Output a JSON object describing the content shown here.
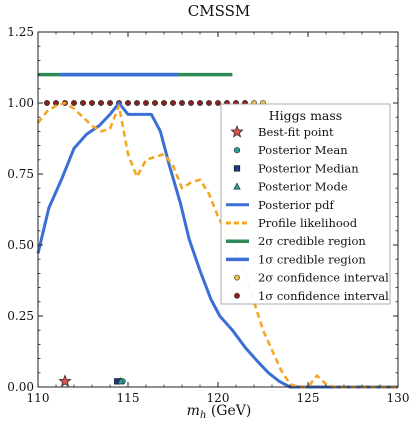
{
  "chart_data": {
    "type": "line",
    "title": "CMSSM",
    "xlabel": "m_h (GeV)",
    "ylabel": "",
    "xlim": [
      110,
      130
    ],
    "ylim": [
      0,
      1.25
    ],
    "x_ticks": [
      110,
      115,
      120,
      125,
      130
    ],
    "y_ticks": [
      0.0,
      0.25,
      0.5,
      0.75,
      1.0,
      1.25
    ],
    "x_tick_labels": [
      "110",
      "115",
      "120",
      "125",
      "130"
    ],
    "y_tick_labels": [
      "0.00",
      "0.25",
      "0.50",
      "0.75",
      "1.00",
      "1.25"
    ],
    "legend_title": "Higgs mass",
    "legend_position": "center-right",
    "series": [
      {
        "name": "Posterior pdf",
        "kind": "line",
        "color": "#3b6fd6",
        "x": [
          110.0,
          110.6,
          111.3,
          112.0,
          112.7,
          113.4,
          114.0,
          114.5,
          115.0,
          115.6,
          116.3,
          116.8,
          117.3,
          117.9,
          118.4,
          119.0,
          119.6,
          120.1,
          120.8,
          121.5,
          122.2,
          122.8,
          123.4,
          124.0,
          130.0
        ],
        "y": [
          0.47,
          0.63,
          0.73,
          0.84,
          0.89,
          0.92,
          0.96,
          1.0,
          0.96,
          0.96,
          0.96,
          0.9,
          0.78,
          0.65,
          0.52,
          0.41,
          0.31,
          0.25,
          0.2,
          0.14,
          0.09,
          0.05,
          0.02,
          0.0,
          0.0
        ]
      },
      {
        "name": "Profile likelihood",
        "kind": "dashed",
        "color": "#f5a623",
        "x": [
          110.0,
          110.5,
          111.0,
          111.5,
          112.0,
          112.5,
          113.0,
          113.5,
          114.0,
          114.5,
          115.0,
          115.5,
          116.0,
          116.5,
          117.0,
          117.5,
          118.0,
          118.5,
          119.0,
          119.5,
          120.0,
          120.5,
          121.0,
          121.5,
          122.0,
          122.5,
          123.0,
          123.5,
          124.0,
          124.5,
          125.0,
          125.5,
          126.0,
          126.5,
          127.0,
          130.0
        ],
        "y": [
          0.93,
          0.97,
          0.99,
          1.0,
          0.98,
          0.95,
          0.92,
          0.9,
          0.91,
          0.99,
          0.82,
          0.74,
          0.8,
          0.81,
          0.82,
          0.78,
          0.7,
          0.72,
          0.73,
          0.68,
          0.6,
          0.54,
          0.48,
          0.4,
          0.3,
          0.2,
          0.13,
          0.06,
          0.01,
          0.0,
          0.0,
          0.04,
          0.01,
          0.0,
          0.0,
          0.0
        ]
      }
    ],
    "intervals": [
      {
        "name": "2σ credible region",
        "color": "#2e8b57",
        "y": 1.1,
        "ranges": [
          [
            110.0,
            120.8
          ]
        ]
      },
      {
        "name": "1σ credible region",
        "color": "#3b6fd6",
        "y": 1.1,
        "ranges": [
          [
            111.2,
            117.8
          ]
        ]
      }
    ],
    "dot_rows": [
      {
        "name": "2σ confidence interval",
        "face": "#f5c24a",
        "edge": "#333333",
        "y": 1.0,
        "x": [
          110.5,
          111.0,
          111.5,
          112.0,
          112.5,
          113.0,
          113.5,
          114.0,
          114.5,
          115.0,
          115.5,
          116.0,
          116.5,
          117.0,
          117.5,
          118.0,
          118.5,
          119.0,
          119.5,
          120.0,
          120.5,
          121.0,
          121.5,
          122.0,
          122.5
        ]
      },
      {
        "name": "1σ confidence interval",
        "face": "#8b2020",
        "edge": "#333333",
        "y": 1.0,
        "x": [
          110.5,
          111.0,
          111.5,
          112.0,
          112.5,
          113.0,
          113.5,
          114.0,
          114.5,
          115.0,
          115.5,
          116.0,
          116.5,
          117.0,
          117.5,
          118.0,
          118.5,
          119.0,
          119.5,
          120.0,
          120.5,
          121.0,
          121.5
        ]
      }
    ],
    "points": [
      {
        "name": "Best-fit point",
        "marker": "star",
        "color": "#d9534f",
        "x": 111.5,
        "y": 0.02
      },
      {
        "name": "Posterior Mean",
        "marker": "circle",
        "color": "#2aa198",
        "x": 114.7,
        "y": 0.02
      },
      {
        "name": "Posterior Median",
        "marker": "square",
        "color": "#1f3a7a",
        "x": 114.4,
        "y": 0.02
      },
      {
        "name": "Posterior Mode",
        "marker": "triangle",
        "color": "#2aa198",
        "x": 114.6,
        "y": 0.02
      }
    ],
    "legend_entries": [
      {
        "label": "Best-fit point",
        "marker": "star",
        "color": "#d9534f"
      },
      {
        "label": "Posterior Mean",
        "marker": "circle",
        "color": "#2aa198"
      },
      {
        "label": "Posterior Median",
        "marker": "square",
        "color": "#1f3a7a"
      },
      {
        "label": "Posterior Mode",
        "marker": "triangle",
        "color": "#2aa198"
      },
      {
        "label": "Posterior pdf",
        "marker": "line",
        "color": "#3b6fd6"
      },
      {
        "label": "Profile likelihood",
        "marker": "dashed",
        "color": "#f5a623"
      },
      {
        "label": "2σ credible region",
        "marker": "thickline",
        "color": "#2e8b57"
      },
      {
        "label": "1σ credible region",
        "marker": "thickline",
        "color": "#3b6fd6"
      },
      {
        "label": "2σ confidence interval",
        "marker": "dot",
        "color": "#f5c24a"
      },
      {
        "label": "1σ confidence interval",
        "marker": "dot",
        "color": "#8b2020"
      }
    ]
  }
}
